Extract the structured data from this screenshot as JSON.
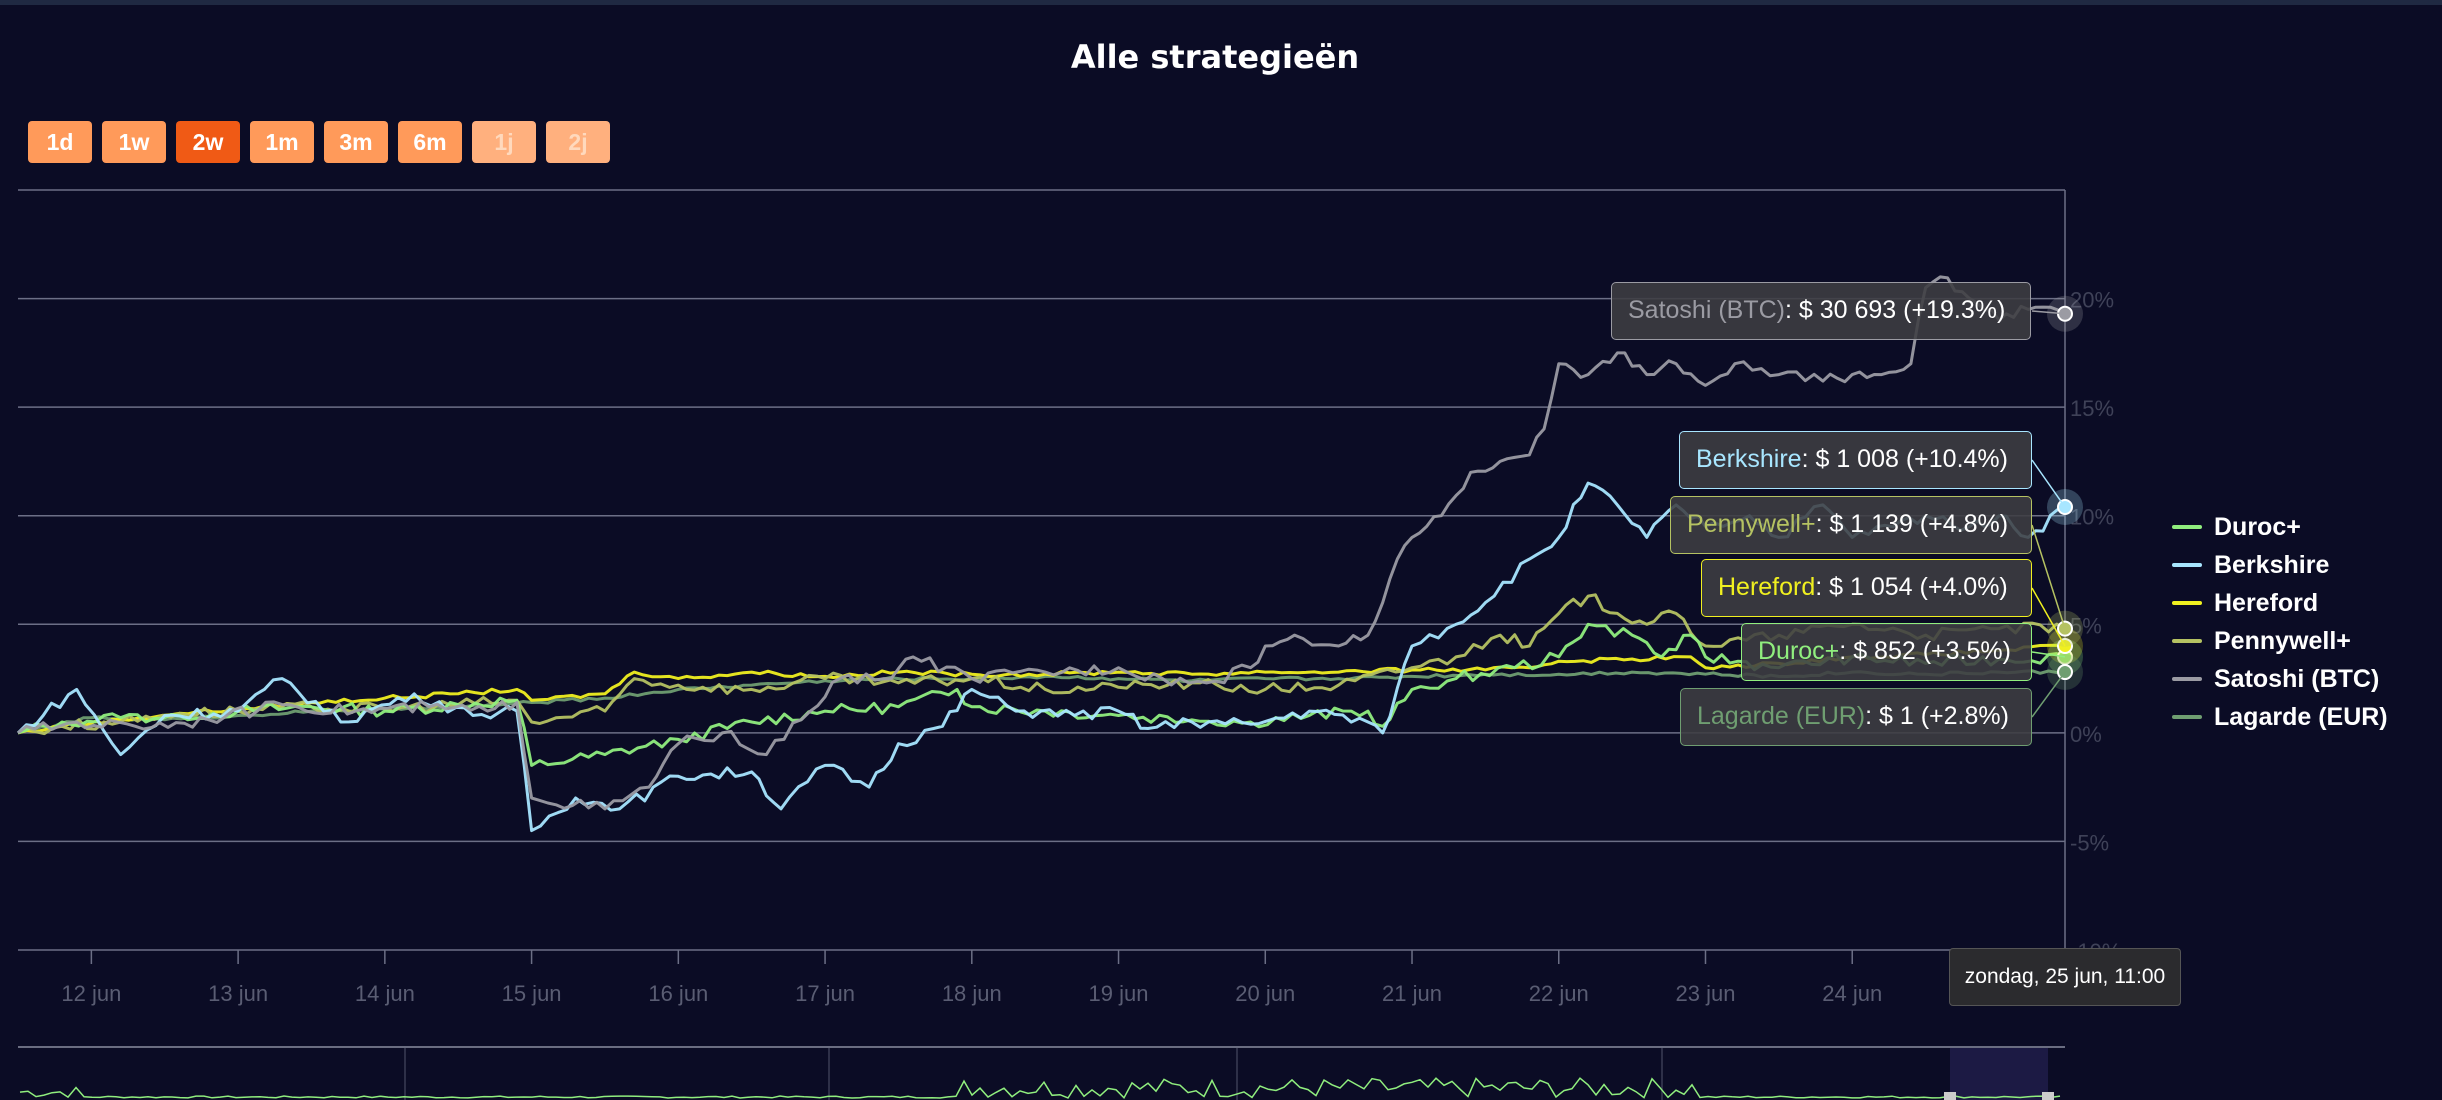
{
  "title": "Alle strategieën",
  "range_buttons": [
    {
      "label": "1d",
      "state": "normal"
    },
    {
      "label": "1w",
      "state": "normal"
    },
    {
      "label": "2w",
      "state": "selected"
    },
    {
      "label": "1m",
      "state": "normal"
    },
    {
      "label": "3m",
      "state": "normal"
    },
    {
      "label": "6m",
      "state": "normal"
    },
    {
      "label": "1j",
      "state": "disabled"
    },
    {
      "label": "2j",
      "state": "disabled"
    }
  ],
  "tooltips": {
    "satoshi": {
      "name": "Satoshi (BTC)",
      "text": ": $ 30 693 (+19.3%)"
    },
    "berkshire": {
      "name": "Berkshire",
      "text": ": $ 1 008 (+10.4%)"
    },
    "pennywell": {
      "name": "Pennywell+",
      "text": ": $ 1 139 (+4.8%)"
    },
    "hereford": {
      "name": "Hereford",
      "text": ": $ 1 054 (+4.0%)"
    },
    "duroc": {
      "name": "Duroc+",
      "text": ": $ 852 (+3.5%)"
    },
    "lagarde": {
      "name": "Lagarde (EUR)",
      "text": ": $ 1 (+2.8%)"
    },
    "date": "zondag, 25 jun, 11:00"
  },
  "chart_data": {
    "type": "line",
    "title": "Alle strategieën",
    "x_ticks": [
      "12 jun",
      "13 jun",
      "14 jun",
      "15 jun",
      "16 jun",
      "17 jun",
      "18 jun",
      "19 jun",
      "20 jun",
      "21 jun",
      "22 jun",
      "23 jun",
      "24 jun"
    ],
    "x_range": [
      11.5,
      25.45
    ],
    "y_ticks": [
      "-10%",
      "-5%",
      "0%",
      "5%",
      "10%",
      "15%",
      "20%"
    ],
    "y_tick_values": [
      -10,
      -5,
      0,
      5,
      10,
      15,
      20
    ],
    "ylim": [
      -10,
      25
    ],
    "grid": true,
    "legend_position": "right",
    "series": [
      {
        "name": "Duroc+",
        "color": "#90ee7e",
        "points": [
          [
            11.5,
            0
          ],
          [
            11.8,
            0.5
          ],
          [
            12.2,
            0.7
          ],
          [
            12.6,
            0.8
          ],
          [
            13.0,
            1.0
          ],
          [
            13.5,
            1.2
          ],
          [
            14.0,
            1.0
          ],
          [
            14.5,
            1.3
          ],
          [
            14.9,
            1.5
          ],
          [
            15.0,
            -1.5
          ],
          [
            15.5,
            -1.0
          ],
          [
            16.0,
            -0.3
          ],
          [
            16.5,
            0.5
          ],
          [
            17.0,
            1.0
          ],
          [
            17.5,
            1.2
          ],
          [
            17.9,
            2.0
          ],
          [
            18.0,
            1.2
          ],
          [
            18.5,
            1.0
          ],
          [
            19.0,
            0.8
          ],
          [
            19.5,
            0.6
          ],
          [
            19.9,
            0.5
          ],
          [
            20.3,
            0.8
          ],
          [
            20.7,
            1.0
          ],
          [
            20.8,
            0.3
          ],
          [
            21.0,
            2.0
          ],
          [
            21.3,
            2.5
          ],
          [
            21.7,
            3.0
          ],
          [
            22.0,
            3.5
          ],
          [
            22.2,
            5.0
          ],
          [
            22.5,
            4.5
          ],
          [
            22.7,
            3.5
          ],
          [
            22.9,
            4.5
          ],
          [
            23.0,
            3.5
          ],
          [
            23.5,
            3.0
          ],
          [
            24.0,
            3.5
          ],
          [
            24.5,
            3.2
          ],
          [
            25.0,
            3.4
          ],
          [
            25.45,
            3.5
          ]
        ]
      },
      {
        "name": "Berkshire",
        "color": "#a8e6ff",
        "points": [
          [
            11.5,
            0
          ],
          [
            11.9,
            2.0
          ],
          [
            12.2,
            -1.0
          ],
          [
            12.5,
            0.8
          ],
          [
            13.0,
            1.0
          ],
          [
            13.3,
            2.5
          ],
          [
            13.7,
            0.5
          ],
          [
            14.2,
            1.8
          ],
          [
            14.6,
            0.8
          ],
          [
            14.9,
            1.0
          ],
          [
            15.0,
            -4.5
          ],
          [
            15.3,
            -3.0
          ],
          [
            15.6,
            -3.5
          ],
          [
            16.0,
            -2.0
          ],
          [
            16.5,
            -1.8
          ],
          [
            16.7,
            -3.5
          ],
          [
            17.0,
            -1.5
          ],
          [
            17.3,
            -2.5
          ],
          [
            17.5,
            -0.5
          ],
          [
            17.8,
            0.3
          ],
          [
            18.0,
            2.0
          ],
          [
            18.3,
            1.0
          ],
          [
            18.7,
            0.8
          ],
          [
            19.0,
            1.0
          ],
          [
            19.2,
            0.2
          ],
          [
            19.5,
            0.5
          ],
          [
            19.9,
            0.4
          ],
          [
            20.3,
            1.0
          ],
          [
            20.7,
            0.5
          ],
          [
            20.8,
            0.0
          ],
          [
            21.0,
            4.0
          ],
          [
            21.3,
            5.0
          ],
          [
            21.5,
            6.0
          ],
          [
            21.8,
            8.0
          ],
          [
            22.0,
            9.0
          ],
          [
            22.2,
            11.5
          ],
          [
            22.4,
            10.5
          ],
          [
            22.6,
            9.0
          ],
          [
            22.8,
            10.5
          ],
          [
            23.0,
            9.5
          ],
          [
            23.3,
            10.0
          ],
          [
            23.5,
            9.0
          ],
          [
            23.8,
            10.5
          ],
          [
            24.0,
            9.0
          ],
          [
            24.5,
            10.0
          ],
          [
            24.8,
            9.5
          ],
          [
            25.0,
            10.0
          ],
          [
            25.2,
            9.0
          ],
          [
            25.45,
            10.4
          ]
        ]
      },
      {
        "name": "Hereford",
        "color": "#f0f020",
        "points": [
          [
            11.5,
            0
          ],
          [
            11.8,
            0.3
          ],
          [
            12.2,
            0.6
          ],
          [
            12.6,
            0.9
          ],
          [
            13.0,
            1.1
          ],
          [
            13.5,
            1.4
          ],
          [
            14.0,
            1.6
          ],
          [
            14.5,
            1.8
          ],
          [
            14.9,
            2.0
          ],
          [
            15.0,
            1.5
          ],
          [
            15.5,
            1.8
          ],
          [
            15.7,
            2.8
          ],
          [
            16.0,
            2.5
          ],
          [
            16.5,
            2.8
          ],
          [
            17.0,
            2.6
          ],
          [
            17.5,
            2.8
          ],
          [
            18.0,
            2.7
          ],
          [
            18.5,
            2.7
          ],
          [
            19.0,
            2.8
          ],
          [
            19.5,
            2.7
          ],
          [
            20.0,
            2.8
          ],
          [
            20.5,
            2.8
          ],
          [
            21.0,
            2.9
          ],
          [
            21.5,
            2.9
          ],
          [
            21.8,
            3.0
          ],
          [
            22.0,
            3.3
          ],
          [
            22.5,
            3.4
          ],
          [
            22.9,
            3.5
          ],
          [
            23.0,
            3.0
          ],
          [
            23.5,
            3.2
          ],
          [
            24.0,
            3.5
          ],
          [
            24.5,
            3.6
          ],
          [
            25.0,
            3.8
          ],
          [
            25.45,
            4.0
          ]
        ]
      },
      {
        "name": "Pennywell+",
        "color": "#b5c262",
        "points": [
          [
            11.5,
            0
          ],
          [
            11.8,
            0.3
          ],
          [
            12.2,
            0.5
          ],
          [
            12.6,
            0.9
          ],
          [
            13.0,
            1.0
          ],
          [
            13.5,
            1.2
          ],
          [
            14.0,
            1.1
          ],
          [
            14.5,
            1.3
          ],
          [
            14.9,
            1.5
          ],
          [
            15.0,
            0.5
          ],
          [
            15.5,
            1.0
          ],
          [
            15.7,
            2.5
          ],
          [
            16.0,
            2.2
          ],
          [
            16.5,
            2.0
          ],
          [
            17.0,
            2.5
          ],
          [
            17.5,
            2.3
          ],
          [
            18.0,
            2.5
          ],
          [
            18.5,
            2.0
          ],
          [
            19.0,
            2.1
          ],
          [
            19.5,
            2.3
          ],
          [
            20.0,
            2.0
          ],
          [
            20.5,
            2.2
          ],
          [
            21.0,
            3.0
          ],
          [
            21.3,
            3.5
          ],
          [
            21.6,
            4.5
          ],
          [
            21.8,
            4.0
          ],
          [
            22.0,
            5.5
          ],
          [
            22.2,
            6.3
          ],
          [
            22.4,
            5.5
          ],
          [
            22.6,
            5.0
          ],
          [
            22.8,
            5.5
          ],
          [
            23.0,
            4.0
          ],
          [
            23.5,
            4.5
          ],
          [
            24.0,
            5.0
          ],
          [
            24.5,
            4.5
          ],
          [
            25.0,
            4.8
          ],
          [
            25.45,
            4.8
          ]
        ]
      },
      {
        "name": "Satoshi (BTC)",
        "color": "#9b9ba3",
        "points": [
          [
            11.5,
            0
          ],
          [
            11.9,
            0.5
          ],
          [
            12.3,
            0.3
          ],
          [
            12.8,
            0.6
          ],
          [
            13.3,
            1.3
          ],
          [
            13.8,
            1.0
          ],
          [
            14.3,
            1.2
          ],
          [
            14.7,
            1.0
          ],
          [
            14.9,
            1.4
          ],
          [
            15.0,
            -3.0
          ],
          [
            15.5,
            -3.5
          ],
          [
            15.8,
            -2.5
          ],
          [
            16.0,
            -0.5
          ],
          [
            16.3,
            0.0
          ],
          [
            16.6,
            -1.0
          ],
          [
            16.9,
            1.0
          ],
          [
            17.1,
            2.5
          ],
          [
            17.4,
            2.5
          ],
          [
            17.6,
            3.5
          ],
          [
            18.0,
            2.5
          ],
          [
            18.5,
            2.8
          ],
          [
            19.0,
            3.0
          ],
          [
            19.3,
            2.5
          ],
          [
            19.6,
            2.3
          ],
          [
            19.9,
            3.0
          ],
          [
            20.0,
            4.0
          ],
          [
            20.2,
            4.5
          ],
          [
            20.5,
            4.0
          ],
          [
            20.7,
            4.5
          ],
          [
            20.8,
            6.0
          ],
          [
            20.9,
            8.0
          ],
          [
            21.0,
            9.0
          ],
          [
            21.2,
            10.0
          ],
          [
            21.4,
            12.0
          ],
          [
            21.6,
            12.5
          ],
          [
            21.8,
            12.8
          ],
          [
            21.9,
            14.0
          ],
          [
            22.0,
            17.0
          ],
          [
            22.2,
            16.5
          ],
          [
            22.4,
            17.5
          ],
          [
            22.6,
            16.5
          ],
          [
            22.8,
            17.0
          ],
          [
            23.0,
            16.0
          ],
          [
            23.2,
            17.0
          ],
          [
            23.5,
            16.5
          ],
          [
            23.8,
            16.2
          ],
          [
            24.0,
            16.5
          ],
          [
            24.2,
            16.5
          ],
          [
            24.4,
            17.0
          ],
          [
            24.5,
            20.5
          ],
          [
            24.6,
            21.0
          ],
          [
            24.8,
            20.0
          ],
          [
            25.0,
            19.0
          ],
          [
            25.2,
            19.5
          ],
          [
            25.45,
            19.3
          ]
        ]
      },
      {
        "name": "Lagarde (EUR)",
        "color": "#6f9e71",
        "points": [
          [
            11.5,
            0
          ],
          [
            12.0,
            0.7
          ],
          [
            12.5,
            0.6
          ],
          [
            13.0,
            0.8
          ],
          [
            13.5,
            1.0
          ],
          [
            14.0,
            1.1
          ],
          [
            14.5,
            1.2
          ],
          [
            15.0,
            1.4
          ],
          [
            15.5,
            1.6
          ],
          [
            16.0,
            2.0
          ],
          [
            16.5,
            2.2
          ],
          [
            17.0,
            2.4
          ],
          [
            17.5,
            2.5
          ],
          [
            18.0,
            2.5
          ],
          [
            18.5,
            2.6
          ],
          [
            19.0,
            2.5
          ],
          [
            19.5,
            2.4
          ],
          [
            20.0,
            2.5
          ],
          [
            20.5,
            2.5
          ],
          [
            21.0,
            2.6
          ],
          [
            21.5,
            2.7
          ],
          [
            22.0,
            2.7
          ],
          [
            22.5,
            2.8
          ],
          [
            23.0,
            2.7
          ],
          [
            23.5,
            2.6
          ],
          [
            24.0,
            2.8
          ],
          [
            24.5,
            2.7
          ],
          [
            25.0,
            2.8
          ],
          [
            25.45,
            2.8
          ]
        ]
      }
    ]
  }
}
